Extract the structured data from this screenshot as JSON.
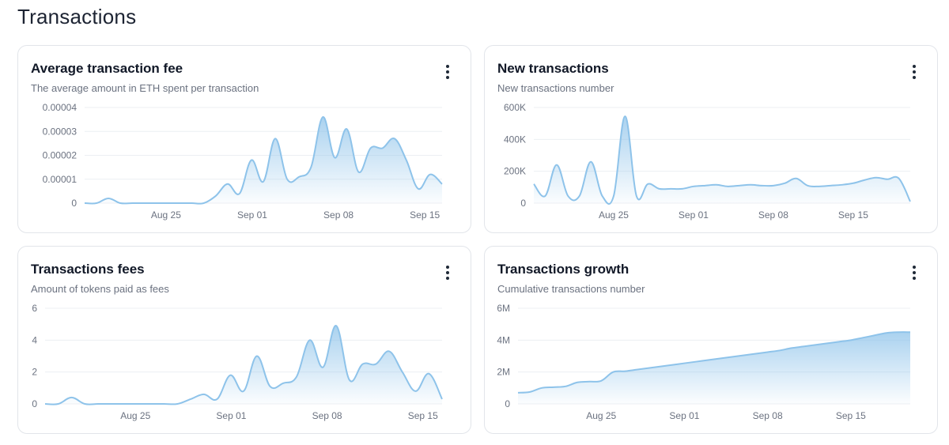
{
  "page": {
    "title": "Transactions"
  },
  "menu_icon": "more-vertical-icon",
  "colors": {
    "line": "#8ec3ea",
    "fill_top": "#8ec3ea",
    "grid": "#eceff3",
    "axis_text": "#6b7280"
  },
  "chart_data": [
    {
      "id": "avg-fee",
      "type": "area",
      "title": "Average transaction fee",
      "subtitle": "The average amount in ETH spent per transaction",
      "ylim": [
        0,
        4e-05
      ],
      "y_ticks": [
        "0",
        "0.00001",
        "0.00002",
        "0.00003",
        "0.00004"
      ],
      "y_tick_values": [
        0,
        1e-05,
        2e-05,
        3e-05,
        4e-05
      ],
      "x_ticks": [
        "Aug 25",
        "Sep 01",
        "Sep 08",
        "Sep 15"
      ],
      "x_range": [
        0,
        29
      ],
      "x_tick_positions": [
        6.6,
        13.6,
        20.6,
        27.6
      ],
      "series": [
        {
          "values": [
            0,
            0,
            2e-06,
            0,
            0,
            0,
            0,
            0,
            0,
            0,
            0,
            3e-06,
            8e-06,
            4e-06,
            1.8e-05,
            9e-06,
            2.7e-05,
            1e-05,
            1.1e-05,
            1.5e-05,
            3.6e-05,
            1.9e-05,
            3.1e-05,
            1.3e-05,
            2.3e-05,
            2.3e-05,
            2.7e-05,
            1.8e-05,
            6e-06,
            1.2e-05,
            8e-06
          ]
        }
      ]
    },
    {
      "id": "new-tx",
      "type": "line",
      "title": "New transactions",
      "subtitle": "New transactions number",
      "ylim": [
        0,
        600000
      ],
      "y_ticks": [
        "0",
        "200K",
        "400K",
        "600K"
      ],
      "y_tick_values": [
        0,
        200000,
        400000,
        600000
      ],
      "x_ticks": [
        "Aug 25",
        "Sep 01",
        "Sep 08",
        "Sep 15"
      ],
      "x_range": [
        0,
        33
      ],
      "x_tick_positions": [
        7.0,
        14.0,
        21.0,
        28.0
      ],
      "series": [
        {
          "values": [
            120000,
            45000,
            240000,
            45000,
            45000,
            260000,
            45000,
            45000,
            545000,
            45000,
            120000,
            90000,
            90000,
            90000,
            105000,
            110000,
            115000,
            105000,
            110000,
            115000,
            110000,
            110000,
            125000,
            155000,
            110000,
            105000,
            110000,
            115000,
            125000,
            145000,
            160000,
            150000,
            155000,
            10000
          ]
        }
      ]
    },
    {
      "id": "tx-fees",
      "type": "area",
      "title": "Transactions fees",
      "subtitle": "Amount of tokens paid as fees",
      "ylim": [
        0,
        6
      ],
      "y_ticks": [
        "0",
        "2",
        "4",
        "6"
      ],
      "y_tick_values": [
        0,
        2,
        4,
        6
      ],
      "x_ticks": [
        "Aug 25",
        "Sep 01",
        "Sep 08",
        "Sep 15"
      ],
      "x_range": [
        0,
        29
      ],
      "x_tick_positions": [
        6.6,
        13.6,
        20.6,
        27.6
      ],
      "series": [
        {
          "values": [
            0,
            0,
            0.4,
            0,
            0,
            0,
            0,
            0,
            0,
            0,
            0,
            0.3,
            0.6,
            0.3,
            1.8,
            0.8,
            3.0,
            1.1,
            1.3,
            1.7,
            4.0,
            2.3,
            4.9,
            1.5,
            2.5,
            2.5,
            3.3,
            2.0,
            0.8,
            1.9,
            0.3
          ]
        }
      ]
    },
    {
      "id": "tx-growth",
      "type": "area",
      "title": "Transactions growth",
      "subtitle": "Cumulative transactions number",
      "ylim": [
        0,
        6000000
      ],
      "y_ticks": [
        "0",
        "2M",
        "4M",
        "6M"
      ],
      "y_tick_values": [
        0,
        2000000,
        4000000,
        6000000
      ],
      "x_ticks": [
        "Aug 25",
        "Sep 01",
        "Sep 08",
        "Sep 15"
      ],
      "x_range": [
        0,
        33
      ],
      "x_tick_positions": [
        7.0,
        14.0,
        21.0,
        28.0
      ],
      "series": [
        {
          "values": [
            700000,
            750000,
            1000000,
            1050000,
            1100000,
            1350000,
            1400000,
            1450000,
            2000000,
            2050000,
            2150000,
            2250000,
            2350000,
            2450000,
            2550000,
            2650000,
            2750000,
            2850000,
            2950000,
            3050000,
            3150000,
            3250000,
            3350000,
            3500000,
            3600000,
            3700000,
            3800000,
            3900000,
            4000000,
            4150000,
            4300000,
            4450000,
            4500000,
            4500000
          ]
        }
      ]
    }
  ]
}
